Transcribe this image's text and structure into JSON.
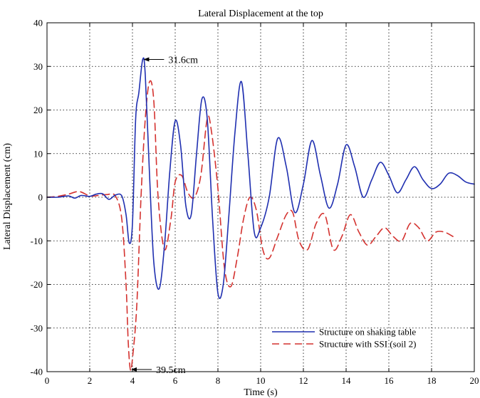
{
  "chart_data": {
    "type": "line",
    "title": "Lateral Displacement at the top",
    "xlabel": "Time (s)",
    "ylabel": "Lateral Displacement (cm)",
    "xlim": [
      0,
      20
    ],
    "ylim": [
      -40,
      40
    ],
    "xticks": [
      0,
      2,
      4,
      6,
      8,
      10,
      12,
      14,
      16,
      18,
      20
    ],
    "yticks": [
      -40,
      -30,
      -20,
      -10,
      0,
      10,
      20,
      30,
      40
    ],
    "grid": true,
    "legend_position": "bottom-right",
    "series": [
      {
        "name": "Structure on shaking table",
        "color": "#1f2fb0",
        "style": "solid",
        "x": [
          0,
          0.5,
          1.0,
          1.3,
          1.6,
          2.0,
          2.3,
          2.6,
          2.9,
          3.2,
          3.5,
          3.7,
          3.85,
          4.0,
          4.15,
          4.3,
          4.48,
          4.6,
          4.8,
          5.0,
          5.25,
          5.5,
          5.75,
          6.0,
          6.25,
          6.5,
          6.75,
          7.0,
          7.25,
          7.5,
          7.75,
          8.0,
          8.25,
          8.5,
          8.8,
          9.1,
          9.4,
          9.7,
          10.0,
          10.4,
          10.8,
          11.2,
          11.6,
          12.0,
          12.4,
          12.8,
          13.2,
          13.6,
          14.0,
          14.4,
          14.8,
          15.2,
          15.6,
          16.0,
          16.4,
          16.8,
          17.2,
          17.6,
          18.0,
          18.4,
          18.8,
          19.2,
          19.6,
          20.0
        ],
        "y": [
          0,
          0,
          0.3,
          -0.2,
          0.4,
          0.2,
          0.7,
          0.8,
          -0.5,
          0.5,
          0.3,
          -4,
          -10.5,
          -6,
          18,
          24,
          31.6,
          28,
          5,
          -15,
          -21,
          -11,
          6,
          17.5,
          12,
          -2,
          -4,
          10,
          22.5,
          18,
          -5,
          -22,
          -20,
          -5,
          15,
          26.5,
          10,
          -8,
          -7,
          0,
          13.5,
          7,
          -3.5,
          3,
          13,
          5,
          -2.5,
          3,
          12,
          7,
          0,
          4,
          8,
          5,
          1,
          4,
          7,
          4,
          2,
          3,
          5.5,
          5,
          3.5,
          3
        ]
      },
      {
        "name": "Structure with SSI (soil 2)",
        "color": "#d4322f",
        "style": "dashed",
        "x": [
          0,
          0.5,
          1.0,
          1.5,
          2.0,
          2.4,
          2.8,
          3.2,
          3.5,
          3.7,
          3.8,
          3.9,
          4.0,
          4.2,
          4.4,
          4.6,
          4.8,
          5.0,
          5.2,
          5.5,
          5.8,
          6.0,
          6.3,
          6.6,
          6.9,
          7.2,
          7.5,
          7.7,
          8.0,
          8.3,
          8.6,
          8.9,
          9.2,
          9.5,
          9.8,
          10.1,
          10.4,
          10.8,
          11.2,
          11.5,
          11.8,
          12.2,
          12.6,
          13.0,
          13.4,
          13.8,
          14.2,
          14.6,
          15.0,
          15.4,
          15.8,
          16.2,
          16.6,
          17.0,
          17.4,
          17.8,
          18.2,
          18.6,
          19.0
        ],
        "y": [
          0,
          0.2,
          0.7,
          1.3,
          0.3,
          0.4,
          0.6,
          0.3,
          -5,
          -20,
          -33,
          -39.5,
          -37,
          -25,
          0,
          18,
          26.5,
          22,
          0,
          -12,
          -5,
          3.5,
          5,
          1,
          0,
          5,
          18,
          15,
          2,
          -16,
          -20.5,
          -14,
          -5,
          0,
          -3,
          -12,
          -14,
          -9,
          -4,
          -3.5,
          -10,
          -12,
          -6,
          -4,
          -12,
          -9,
          -4,
          -8,
          -11,
          -9,
          -7,
          -9,
          -10,
          -6,
          -7,
          -10,
          -8,
          -8,
          -9
        ]
      }
    ],
    "annotations": [
      {
        "text": "31.6cm",
        "x": 4.48,
        "y": 31.6
      },
      {
        "text": "39.5cm",
        "x": 3.9,
        "y": -39.5
      }
    ]
  }
}
